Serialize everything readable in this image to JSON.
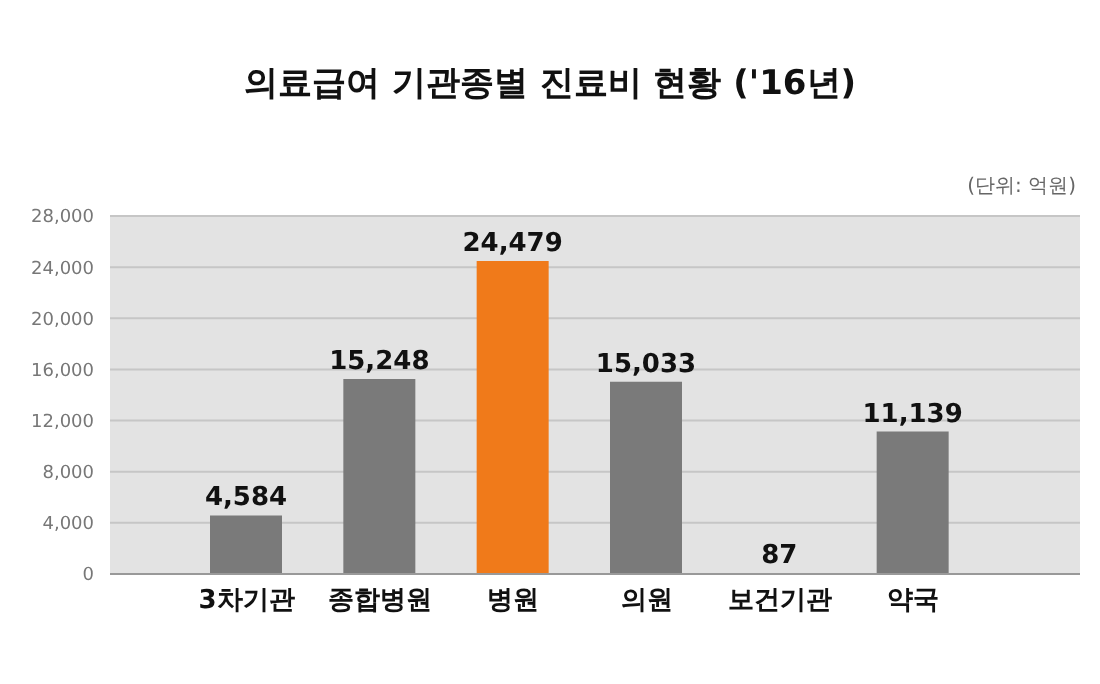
{
  "chart_data": {
    "type": "bar",
    "title": "의료급여 기관종별 진료비 현황 ('16년)",
    "annotations": [
      "(단위: 억원)"
    ],
    "categories": [
      "3차기관",
      "종합병원",
      "병원",
      "의원",
      "보건기관",
      "약국"
    ],
    "values": [
      4584,
      15248,
      24479,
      15033,
      87,
      11139
    ],
    "value_labels": [
      "4,584",
      "15,248",
      "24,479",
      "15,033",
      "87",
      "11,139"
    ],
    "colors": [
      "#7a7a7a",
      "#7a7a7a",
      "#f07a1a",
      "#7a7a7a",
      "#7a7a7a",
      "#7a7a7a"
    ],
    "ylim": [
      0,
      28000
    ],
    "yticks": [
      0,
      {
        "value": 4000,
        "label": "4,000"
      },
      {
        "value": 8000,
        "label": "8,000"
      },
      {
        "value": 12000,
        "label": "12,000"
      },
      {
        "value": 16000,
        "label": "16,000"
      },
      {
        "value": 20000,
        "label": "20,000"
      },
      {
        "value": 24000,
        "label": "24,000"
      },
      {
        "value": 28000,
        "label": "28,000"
      }
    ],
    "grid": "y"
  }
}
